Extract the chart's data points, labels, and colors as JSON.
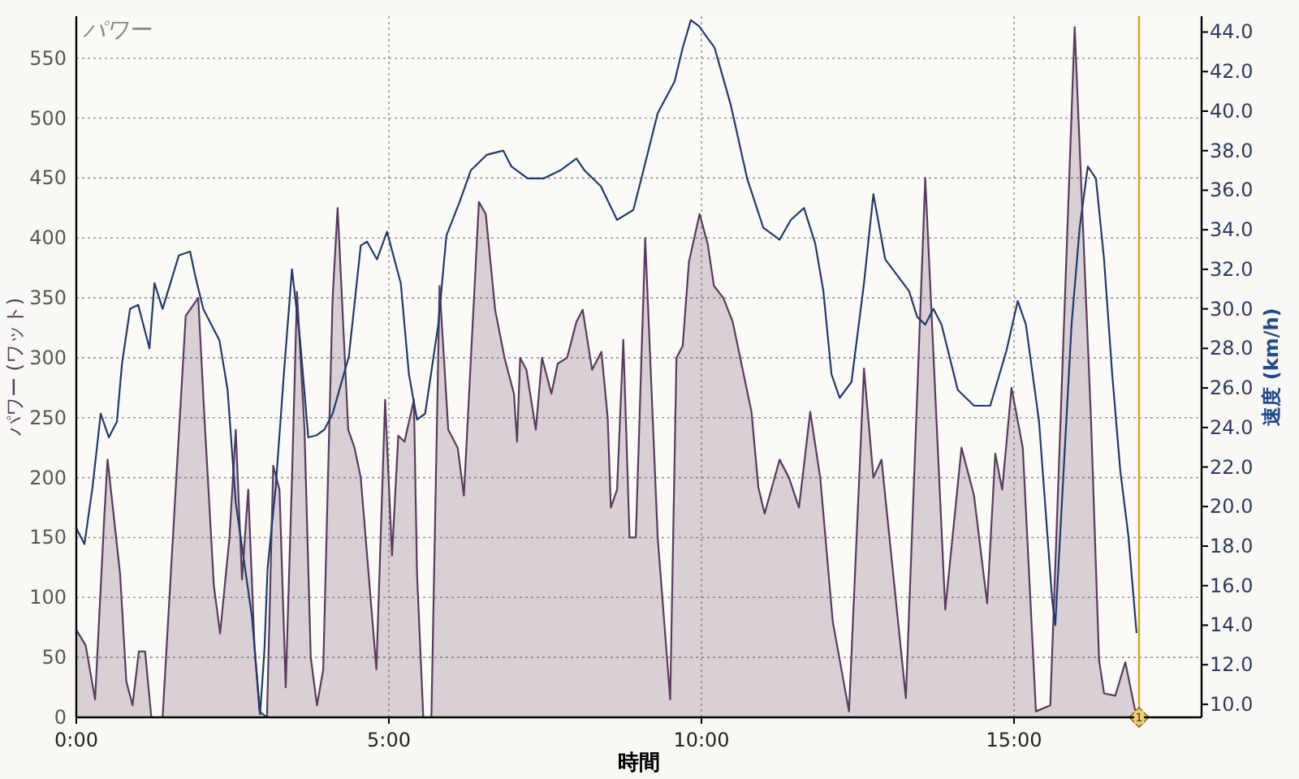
{
  "chart_data": {
    "type": "area",
    "title": "パワー",
    "xlabel": "時間",
    "ylabel": "パワー (ワット)",
    "y2label": "速度 (km/h)",
    "xlim": [
      0,
      18
    ],
    "xticks": [
      {
        "value": 0,
        "label": "0:00"
      },
      {
        "value": 5,
        "label": "5:00"
      },
      {
        "value": 10,
        "label": "10:00"
      },
      {
        "value": 15,
        "label": "15:00"
      }
    ],
    "ylim": [
      0,
      585
    ],
    "yticks": [
      0,
      50,
      100,
      150,
      200,
      250,
      300,
      350,
      400,
      450,
      500,
      550
    ],
    "y2lim": [
      9.34,
      44.8
    ],
    "y2ticks": [
      {
        "value": 10,
        "label": "10.0"
      },
      {
        "value": 12,
        "label": "12.0"
      },
      {
        "value": 14,
        "label": "14.0"
      },
      {
        "value": 16,
        "label": "16.0"
      },
      {
        "value": 18,
        "label": "18.0"
      },
      {
        "value": 20,
        "label": "20.0"
      },
      {
        "value": 22,
        "label": "22.0"
      },
      {
        "value": 24,
        "label": "24.0"
      },
      {
        "value": 26,
        "label": "26.0"
      },
      {
        "value": 28,
        "label": "28.0"
      },
      {
        "value": 30,
        "label": "30.0"
      },
      {
        "value": 32,
        "label": "32.0"
      },
      {
        "value": 34,
        "label": "34.0"
      },
      {
        "value": 36,
        "label": "36.0"
      },
      {
        "value": 38,
        "label": "38.0"
      },
      {
        "value": 40,
        "label": "40.0"
      },
      {
        "value": 42,
        "label": "42.0"
      },
      {
        "value": 44,
        "label": "44.0"
      }
    ],
    "grid": true,
    "ref_lines": [
      {
        "axis": "x",
        "value": 17,
        "color": "#d4a020"
      }
    ],
    "annotations": [
      {
        "text": "1",
        "x": 17,
        "y": 0
      }
    ],
    "series": [
      {
        "color": "#5a3a5e",
        "x": [
          0,
          0.15,
          0.3,
          0.45,
          0.5,
          0.7,
          0.8,
          0.9,
          1.0,
          1.1,
          1.2,
          1.38,
          1.6,
          1.75,
          1.95,
          2.05,
          2.2,
          2.3,
          2.45,
          2.55,
          2.65,
          2.75,
          2.85,
          2.93,
          3.05,
          3.15,
          3.25,
          3.35,
          3.45,
          3.53,
          3.65,
          3.75,
          3.85,
          3.95,
          4.05,
          4.1,
          4.18,
          4.35,
          4.45,
          4.55,
          4.8,
          4.94,
          5.05,
          5.15,
          5.25,
          5.4,
          5.45,
          5.55,
          5.68,
          5.81,
          5.95,
          6.1,
          6.2,
          6.44,
          6.55,
          6.7,
          6.85,
          7.0,
          7.05,
          7.1,
          7.2,
          7.35,
          7.45,
          7.6,
          7.7,
          7.85,
          8.0,
          8.1,
          8.25,
          8.4,
          8.5,
          8.55,
          8.65,
          8.75,
          8.85,
          8.95,
          9.1,
          9.3,
          9.5,
          9.6,
          9.7,
          9.8,
          9.97,
          10.1,
          10.2,
          10.35,
          10.5,
          10.6,
          10.7,
          10.8,
          10.91,
          11.01,
          11.25,
          11.4,
          11.56,
          11.74,
          11.9,
          12.1,
          12.36,
          12.6,
          12.75,
          12.88,
          13.27,
          13.58,
          13.9,
          14.16,
          14.36,
          14.57,
          14.7,
          14.81,
          14.96,
          15.14,
          15.35,
          15.58,
          15.97,
          16.23,
          16.36,
          16.44,
          16.62,
          16.78,
          16.96
        ],
        "values": [
          73,
          60,
          15,
          170,
          215,
          120,
          30,
          10,
          55,
          55,
          0,
          0,
          200,
          335,
          350,
          250,
          110,
          70,
          150,
          240,
          115,
          190,
          60,
          5,
          0,
          210,
          190,
          25,
          200,
          355,
          240,
          50,
          10,
          40,
          250,
          350,
          425,
          240,
          225,
          200,
          40,
          265,
          135,
          235,
          230,
          265,
          120,
          0,
          0,
          360,
          240,
          225,
          185,
          430,
          420,
          340,
          300,
          270,
          230,
          300,
          290,
          240,
          300,
          270,
          295,
          300,
          330,
          340,
          290,
          305,
          250,
          175,
          190,
          315,
          150,
          150,
          400,
          150,
          15,
          300,
          310,
          380,
          420,
          395,
          360,
          350,
          330,
          305,
          280,
          255,
          192,
          170,
          215,
          200,
          175,
          255,
          200,
          80,
          5,
          291,
          200,
          215,
          16,
          450,
          90,
          225,
          185,
          95,
          220,
          190,
          275,
          225,
          5,
          10,
          576,
          250,
          48,
          20,
          18,
          46,
          0
        ]
      },
      {
        "type": "line",
        "axis": "y2",
        "color": "#1f3a6e",
        "x": [
          0,
          0.13,
          0.26,
          0.39,
          0.52,
          0.65,
          0.73,
          0.86,
          0.99,
          1.17,
          1.25,
          1.38,
          1.64,
          1.82,
          1.9,
          2.03,
          2.29,
          2.42,
          2.55,
          2.81,
          2.94,
          3.01,
          3.06,
          3.19,
          3.32,
          3.45,
          3.58,
          3.71,
          3.84,
          3.97,
          4.1,
          4.36,
          4.55,
          4.65,
          4.81,
          4.97,
          5.19,
          5.32,
          5.45,
          5.58,
          5.79,
          5.92,
          6.13,
          6.31,
          6.57,
          6.83,
          6.96,
          7.22,
          7.48,
          7.74,
          8.0,
          8.13,
          8.39,
          8.65,
          8.91,
          9.04,
          9.3,
          9.57,
          9.7,
          9.83,
          9.96,
          10.21,
          10.47,
          10.73,
          10.99,
          11.25,
          11.43,
          11.64,
          11.82,
          11.95,
          12.08,
          12.21,
          12.4,
          12.6,
          12.75,
          12.94,
          13.32,
          13.45,
          13.58,
          13.71,
          13.84,
          14.1,
          14.36,
          14.62,
          14.88,
          15.06,
          15.19,
          15.4,
          15.61,
          15.66,
          15.92,
          16.05,
          16.18,
          16.31,
          16.44,
          16.57,
          16.7,
          16.83,
          16.96
        ],
        "values": [
          18.9,
          18.1,
          21,
          24.7,
          23.5,
          24.3,
          27.2,
          30,
          30.2,
          28,
          31.3,
          30,
          32.7,
          32.9,
          31.7,
          30,
          28.4,
          25.9,
          20.2,
          14.4,
          9.5,
          12.8,
          16.9,
          21,
          26.7,
          32,
          28.4,
          23.5,
          23.6,
          23.9,
          24.7,
          27.6,
          33.2,
          33.4,
          32.5,
          33.9,
          31.3,
          26.7,
          24.4,
          24.7,
          29.2,
          33.7,
          35.4,
          37,
          37.8,
          38,
          37.2,
          36.6,
          36.6,
          37,
          37.6,
          37,
          36.2,
          34.5,
          35,
          36.6,
          39.9,
          41.5,
          43.2,
          44.6,
          44.3,
          43.2,
          40.3,
          36.6,
          34.1,
          33.5,
          34.5,
          35.1,
          33.3,
          30.9,
          26.7,
          25.5,
          26.3,
          31.3,
          35.8,
          32.5,
          30.9,
          29.6,
          29.2,
          30,
          29.2,
          25.9,
          25.1,
          25.1,
          27.9,
          30.4,
          29.2,
          24.3,
          15.3,
          14,
          29.2,
          34.1,
          37.2,
          36.6,
          32.5,
          26.7,
          21.8,
          18.5,
          13.6
        ]
      }
    ]
  }
}
